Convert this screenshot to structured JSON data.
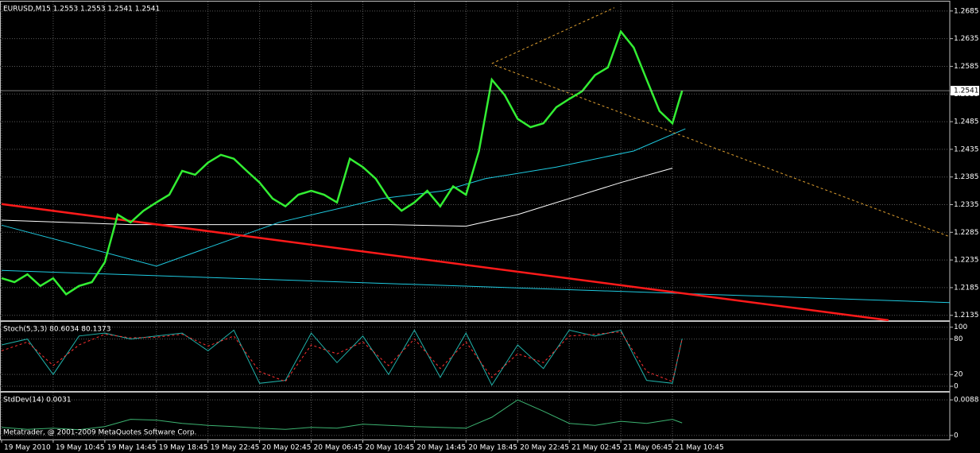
{
  "chart_data": [
    {
      "type": "line",
      "title": "EURUSD,M15  1.2553 1.2553 1.2541 1.2541",
      "grid": true,
      "xlim": [
        0,
        294
      ],
      "ylim": [
        1.2126,
        1.2702
      ],
      "yticks": [
        1.2685,
        1.2635,
        1.2585,
        1.2535,
        1.2485,
        1.2435,
        1.2385,
        1.2335,
        1.2285,
        1.2235,
        1.2185,
        1.2135
      ],
      "xticks": [
        {
          "value": 0,
          "label": "19 May 2010"
        },
        {
          "value": 16,
          "label": "19 May 10:45"
        },
        {
          "value": 32,
          "label": "19 May 14:45"
        },
        {
          "value": 48,
          "label": "19 May 18:45"
        },
        {
          "value": 64,
          "label": "19 May 22:45"
        },
        {
          "value": 80,
          "label": "20 May 02:45"
        },
        {
          "value": 96,
          "label": "20 May 06:45"
        },
        {
          "value": 112,
          "label": "20 May 10:45"
        },
        {
          "value": 128,
          "label": "20 May 14:45"
        },
        {
          "value": 144,
          "label": "20 May 18:45"
        },
        {
          "value": 160,
          "label": "20 May 22:45"
        },
        {
          "value": 176,
          "label": "21 May 02:45"
        },
        {
          "value": 192,
          "label": "21 May 06:45"
        },
        {
          "value": 208,
          "label": "21 May 10:45"
        }
      ],
      "current_price": 1.2541,
      "series": [
        {
          "color": "#ffffff",
          "x": [
            0,
            40,
            80,
            120,
            144,
            160,
            176,
            192,
            208
          ],
          "values": [
            1.2307,
            1.2299,
            1.2299,
            1.2299,
            1.2296,
            1.2317,
            1.2346,
            1.2375,
            1.2401
          ]
        },
        {
          "color": "#1ecbe1",
          "x": [
            0,
            48,
            86,
            118,
            137,
            150,
            172,
            196,
            212
          ],
          "values": [
            1.2298,
            1.2224,
            1.2303,
            1.2346,
            1.236,
            1.2382,
            1.2403,
            1.2432,
            1.2472
          ]
        },
        {
          "color": "#1ecbe1",
          "x": [
            0,
            294
          ],
          "values": [
            1.2216,
            1.2158
          ]
        },
        {
          "color": "#ff1a1a",
          "width": 2.5,
          "x": [
            0,
            275
          ],
          "values": [
            1.2336,
            1.2126
          ]
        },
        {
          "color": "#e0a030",
          "dash": true,
          "x": [
            152,
            190
          ],
          "values": [
            1.259,
            1.2691
          ]
        },
        {
          "color": "#e0a030",
          "dash": true,
          "x": [
            153,
            294
          ],
          "values": [
            1.2587,
            1.2277
          ]
        },
        {
          "color": "#33ee33",
          "width": 2.5,
          "x": [
            0,
            4,
            8,
            12,
            16,
            20,
            24,
            28,
            32,
            36,
            40,
            44,
            48,
            52,
            56,
            60,
            64,
            68,
            72,
            76,
            80,
            84,
            88,
            92,
            96,
            100,
            104,
            108,
            112,
            116,
            120,
            124,
            128,
            132,
            136,
            140,
            144,
            148,
            152,
            156,
            160,
            164,
            168,
            172,
            176,
            180,
            184,
            188,
            192,
            196,
            200,
            204,
            208,
            211
          ],
          "values": [
            1.2202,
            1.2195,
            1.2209,
            1.2188,
            1.2202,
            1.2173,
            1.2188,
            1.2195,
            1.2231,
            1.2317,
            1.2303,
            1.2324,
            1.2339,
            1.2353,
            1.2396,
            1.2389,
            1.2411,
            1.2425,
            1.2418,
            1.2396,
            1.2375,
            1.2346,
            1.2332,
            1.2353,
            1.236,
            1.2353,
            1.2339,
            1.2418,
            1.2403,
            1.2382,
            1.2346,
            1.2324,
            1.2339,
            1.236,
            1.2332,
            1.2368,
            1.2353,
            1.2432,
            1.2561,
            1.2533,
            1.249,
            1.2475,
            1.2482,
            1.2511,
            1.2526,
            1.254,
            1.2569,
            1.2583,
            1.2648,
            1.2619,
            1.2561,
            1.2504,
            1.2482,
            1.2541
          ]
        }
      ]
    },
    {
      "type": "line",
      "title": "Stoch(5,3,3) 80.6034 80.1373",
      "grid": true,
      "xlim": [
        0,
        294
      ],
      "ylim": [
        -8,
        109
      ],
      "yticks": [
        0,
        20,
        80,
        100
      ],
      "series": [
        {
          "color": "#20b2aa",
          "x": [
            0,
            8,
            16,
            24,
            32,
            40,
            48,
            56,
            64,
            72,
            80,
            88,
            96,
            104,
            112,
            120,
            128,
            136,
            144,
            152,
            160,
            168,
            176,
            184,
            192,
            200,
            208,
            211
          ],
          "values": [
            70,
            80,
            20,
            85,
            90,
            80,
            85,
            90,
            60,
            95,
            5,
            10,
            90,
            40,
            85,
            20,
            95,
            15,
            90,
            2,
            70,
            30,
            95,
            85,
            95,
            10,
            5,
            80.6034
          ]
        },
        {
          "color": "#ff3030",
          "dash": true,
          "x": [
            0,
            8,
            16,
            24,
            32,
            40,
            48,
            56,
            64,
            72,
            80,
            88,
            96,
            104,
            112,
            120,
            128,
            136,
            144,
            152,
            160,
            168,
            176,
            184,
            192,
            200,
            208,
            211
          ],
          "values": [
            60,
            75,
            35,
            70,
            88,
            82,
            83,
            88,
            68,
            85,
            25,
            8,
            70,
            55,
            75,
            35,
            80,
            30,
            75,
            15,
            55,
            40,
            85,
            88,
            92,
            25,
            8,
            80.1373
          ]
        }
      ]
    },
    {
      "type": "line",
      "title": "StdDev(14) 0.0031",
      "grid": true,
      "xlim": [
        0,
        294
      ],
      "ylim": [
        -0.001,
        0.0106
      ],
      "yticks": [
        0,
        0.0088
      ],
      "series": [
        {
          "color": "#3cb371",
          "x": [
            0,
            8,
            16,
            24,
            32,
            40,
            48,
            56,
            64,
            72,
            80,
            88,
            96,
            104,
            112,
            120,
            128,
            136,
            144,
            152,
            160,
            168,
            176,
            184,
            192,
            200,
            208,
            211
          ],
          "values": [
            0.002,
            0.0015,
            0.0018,
            0.0014,
            0.0022,
            0.004,
            0.0038,
            0.003,
            0.0025,
            0.0022,
            0.0018,
            0.0015,
            0.002,
            0.0018,
            0.0028,
            0.0025,
            0.0022,
            0.002,
            0.0018,
            0.0045,
            0.0088,
            0.006,
            0.003,
            0.0025,
            0.0035,
            0.003,
            0.004,
            0.0031
          ]
        }
      ]
    }
  ],
  "watermark": "Metatrader, @ 2001-2009 MetaQuotes Software Corp."
}
